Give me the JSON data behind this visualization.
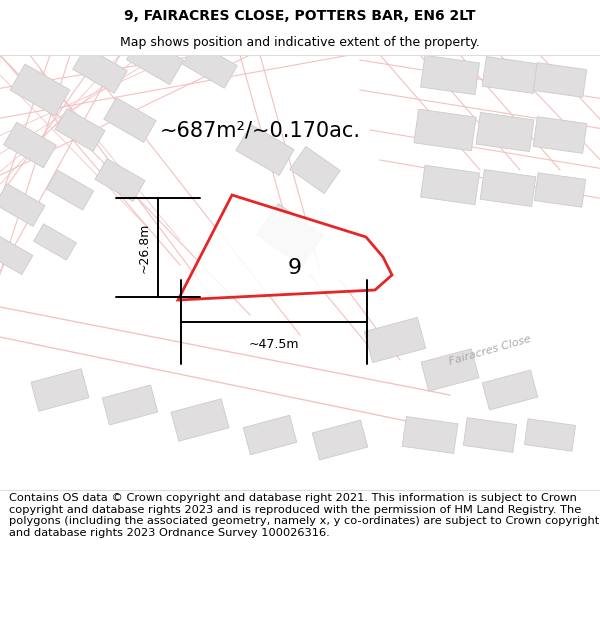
{
  "title": "9, FAIRACRES CLOSE, POTTERS BAR, EN6 2LT",
  "subtitle": "Map shows position and indicative extent of the property.",
  "area_label": "~687m²/~0.170ac.",
  "width_label": "~47.5m",
  "height_label": "~26.8m",
  "property_number": "9",
  "street_label": "Fairacres Close",
  "footer_text": "Contains OS data © Crown copyright and database right 2021. This information is subject to Crown copyright and database rights 2023 and is reproduced with the permission of HM Land Registry. The polygons (including the associated geometry, namely x, y co-ordinates) are subject to Crown copyright and database rights 2023 Ordnance Survey 100026316.",
  "bg_color": "#ffffff",
  "map_bg": "#ffffff",
  "road_color": "#f5c0c0",
  "road_lw": 0.8,
  "building_color": "#e0dede",
  "building_outline": "#cccccc",
  "building_lw": 0.6,
  "highlight_color": "#e00000",
  "highlight_lw": 2.0,
  "title_fontsize": 10,
  "subtitle_fontsize": 9,
  "area_fontsize": 15,
  "number_fontsize": 16,
  "footer_fontsize": 8.2,
  "dim_lw": 1.4,
  "dim_fontsize": 9,
  "street_fontsize": 8
}
